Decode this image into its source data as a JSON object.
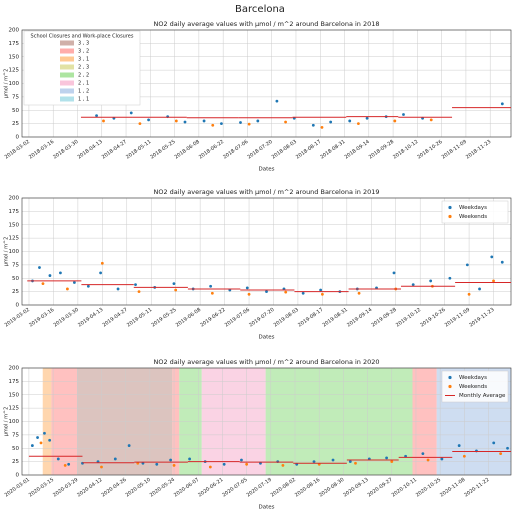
{
  "title": "Barcelona",
  "chart_data": [
    {
      "type": "scatter",
      "title": "NO2 daily average values with μmol / m^2 around Barcelona in 2018",
      "xlabel": "Dates",
      "ylabel": "μmol / m^2",
      "xlim": [
        "2018-02-26",
        "2018-12-05"
      ],
      "xticks": [
        "2018-03-02",
        "2018-03-16",
        "2018-03-30",
        "2018-04-13",
        "2018-04-27",
        "2018-05-11",
        "2018-05-25",
        "2018-06-08",
        "2018-06-22",
        "2018-07-06",
        "2018-07-20",
        "2018-08-03",
        "2018-08-17",
        "2018-08-31",
        "2018-09-14",
        "2018-09-28",
        "2018-10-12",
        "2018-10-26",
        "2018-11-09",
        "2018-11-23"
      ],
      "ylim": [
        0,
        200
      ],
      "yticks": [
        0,
        25,
        50,
        75,
        100,
        125,
        150,
        175,
        200
      ],
      "grid": true,
      "series": [
        {
          "color": "#1f77b4",
          "x": [
            "2018-04-10",
            "2018-04-20",
            "2018-04-30",
            "2018-05-10",
            "2018-05-21",
            "2018-05-31",
            "2018-06-11",
            "2018-06-21",
            "2018-07-02",
            "2018-07-12",
            "2018-07-23",
            "2018-08-02",
            "2018-08-13",
            "2018-08-23",
            "2018-09-03",
            "2018-09-13",
            "2018-09-24",
            "2018-10-04",
            "2018-10-15",
            "2018-11-30"
          ],
          "values": [
            40,
            35,
            45,
            32,
            38,
            28,
            30,
            25,
            27,
            30,
            67,
            35,
            22,
            28,
            30,
            35,
            38,
            42,
            35,
            62
          ]
        },
        {
          "color": "#ff7f0e",
          "x": [
            "2018-04-14",
            "2018-05-05",
            "2018-05-26",
            "2018-06-16",
            "2018-07-07",
            "2018-07-28",
            "2018-08-18",
            "2018-09-08",
            "2018-09-29",
            "2018-10-20"
          ],
          "values": [
            30,
            25,
            30,
            22,
            24,
            28,
            18,
            25,
            30,
            32
          ]
        },
        {
          "style": "step",
          "color": "#d62728",
          "x": [
            "2018-04-01",
            "2018-05-01",
            "2018-06-01",
            "2018-07-01",
            "2018-08-01",
            "2018-09-01",
            "2018-10-01",
            "2018-11-01"
          ],
          "values": [
            37,
            37,
            36,
            36,
            37,
            38,
            37,
            55
          ]
        }
      ],
      "closure_legend": {
        "title": "School Closures and Work-place Closures",
        "corner": "upper left",
        "entries": [
          {
            "label": "3 , 3",
            "color": "#c49c94"
          },
          {
            "label": "3 , 2",
            "color": "#ff9896"
          },
          {
            "label": "3 , 1",
            "color": "#ffbb78"
          },
          {
            "label": "2 , 3",
            "color": "#dbdb8d"
          },
          {
            "label": "2 , 2",
            "color": "#98df8a"
          },
          {
            "label": "2 , 1",
            "color": "#f7b6d2"
          },
          {
            "label": "1 , 2",
            "color": "#aec7e8"
          },
          {
            "label": "1 , 1",
            "color": "#9edae5"
          }
        ]
      }
    },
    {
      "type": "scatter",
      "title": "NO2 daily average values with μmol / m^2 around Barcelona in 2019",
      "xlabel": "Dates",
      "ylabel": "μmol / m^2",
      "xlim": [
        "2019-02-26",
        "2019-12-03"
      ],
      "xticks": [
        "2019-03-02",
        "2019-03-16",
        "2019-03-30",
        "2019-04-13",
        "2019-04-27",
        "2019-05-11",
        "2019-05-25",
        "2019-06-08",
        "2019-06-22",
        "2019-07-06",
        "2019-07-20",
        "2019-08-03",
        "2019-08-17",
        "2019-08-31",
        "2019-09-14",
        "2019-09-28",
        "2019-10-12",
        "2019-10-26",
        "2019-11-09",
        "2019-11-23"
      ],
      "ylim": [
        0,
        200
      ],
      "yticks": [
        0,
        25,
        50,
        75,
        100,
        125,
        150,
        175,
        200
      ],
      "grid": true,
      "legend": "upper right",
      "series": [
        {
          "name": "Weekdays",
          "color": "#1f77b4",
          "x": [
            "2019-03-04",
            "2019-03-08",
            "2019-03-14",
            "2019-03-20",
            "2019-03-28",
            "2019-04-05",
            "2019-04-12",
            "2019-04-22",
            "2019-05-02",
            "2019-05-13",
            "2019-05-24",
            "2019-06-04",
            "2019-06-14",
            "2019-06-25",
            "2019-07-05",
            "2019-07-16",
            "2019-07-26",
            "2019-08-06",
            "2019-08-16",
            "2019-08-27",
            "2019-09-06",
            "2019-09-17",
            "2019-09-27",
            "2019-10-08",
            "2019-10-18",
            "2019-10-29",
            "2019-11-08",
            "2019-11-15",
            "2019-11-22",
            "2019-11-28"
          ],
          "values": [
            45,
            70,
            55,
            60,
            42,
            35,
            60,
            30,
            38,
            33,
            40,
            30,
            35,
            28,
            32,
            25,
            30,
            22,
            28,
            25,
            30,
            32,
            60,
            38,
            45,
            50,
            75,
            30,
            90,
            80
          ]
        },
        {
          "name": "Weekends",
          "color": "#ff7f0e",
          "x": [
            "2019-03-10",
            "2019-03-24",
            "2019-04-13",
            "2019-05-04",
            "2019-05-25",
            "2019-06-15",
            "2019-07-06",
            "2019-07-27",
            "2019-08-17",
            "2019-09-07",
            "2019-09-28",
            "2019-10-19",
            "2019-11-09",
            "2019-11-23"
          ],
          "values": [
            40,
            30,
            78,
            25,
            28,
            22,
            20,
            24,
            20,
            22,
            30,
            35,
            20,
            45
          ]
        },
        {
          "style": "step",
          "color": "#d62728",
          "x": [
            "2019-03-01",
            "2019-04-01",
            "2019-05-01",
            "2019-06-01",
            "2019-07-01",
            "2019-08-01",
            "2019-09-01",
            "2019-10-01",
            "2019-11-01"
          ],
          "values": [
            45,
            38,
            33,
            30,
            28,
            25,
            30,
            35,
            42
          ]
        }
      ]
    },
    {
      "type": "scatter",
      "title": "NO2 daily average values with μmol / m^2 around Barcelona in 2020",
      "xlabel": "Dates",
      "ylabel": "μmol / m^2",
      "xlim": [
        "2020-02-26",
        "2020-12-05"
      ],
      "xticks": [
        "2020-03-01",
        "2020-03-15",
        "2020-03-29",
        "2020-04-12",
        "2020-04-26",
        "2020-05-10",
        "2020-05-24",
        "2020-06-07",
        "2020-06-21",
        "2020-07-05",
        "2020-07-19",
        "2020-08-02",
        "2020-08-16",
        "2020-08-30",
        "2020-09-13",
        "2020-09-27",
        "2020-10-11",
        "2020-10-25",
        "2020-11-08",
        "2020-11-22"
      ],
      "ylim": [
        0,
        200
      ],
      "yticks": [
        0,
        25,
        50,
        75,
        100,
        125,
        150,
        175,
        200
      ],
      "grid": true,
      "legend": "upper right",
      "regions": [
        {
          "start": "2020-03-09",
          "end": "2020-03-14",
          "color": "#ffbb78"
        },
        {
          "start": "2020-03-14",
          "end": "2020-03-29",
          "color": "#ff9896"
        },
        {
          "start": "2020-03-29",
          "end": "2020-05-23",
          "color": "#c49c94"
        },
        {
          "start": "2020-05-23",
          "end": "2020-05-27",
          "color": "#ff9896"
        },
        {
          "start": "2020-05-27",
          "end": "2020-06-09",
          "color": "#98df8a"
        },
        {
          "start": "2020-06-09",
          "end": "2020-07-16",
          "color": "#f7b6d2"
        },
        {
          "start": "2020-07-16",
          "end": "2020-10-09",
          "color": "#98df8a"
        },
        {
          "start": "2020-10-09",
          "end": "2020-10-23",
          "color": "#ff9896"
        },
        {
          "start": "2020-10-23",
          "end": "2020-12-05",
          "color": "#aec7e8"
        }
      ],
      "series": [
        {
          "name": "Weekdays",
          "color": "#1f77b4",
          "x": [
            "2020-03-03",
            "2020-03-06",
            "2020-03-10",
            "2020-03-13",
            "2020-03-18",
            "2020-03-24",
            "2020-04-01",
            "2020-04-10",
            "2020-04-20",
            "2020-04-28",
            "2020-05-06",
            "2020-05-14",
            "2020-05-22",
            "2020-06-02",
            "2020-06-11",
            "2020-06-22",
            "2020-07-02",
            "2020-07-13",
            "2020-07-23",
            "2020-08-03",
            "2020-08-13",
            "2020-08-24",
            "2020-09-03",
            "2020-09-14",
            "2020-09-24",
            "2020-10-05",
            "2020-10-15",
            "2020-10-26",
            "2020-11-05",
            "2020-11-15",
            "2020-11-25",
            "2020-12-03"
          ],
          "values": [
            55,
            70,
            78,
            65,
            30,
            20,
            22,
            25,
            30,
            55,
            22,
            20,
            28,
            30,
            25,
            20,
            28,
            22,
            25,
            20,
            25,
            28,
            25,
            30,
            32,
            35,
            40,
            30,
            55,
            45,
            60,
            50
          ]
        },
        {
          "name": "Weekends",
          "color": "#ff7f0e",
          "x": [
            "2020-03-08",
            "2020-03-22",
            "2020-04-12",
            "2020-05-03",
            "2020-05-24",
            "2020-06-14",
            "2020-07-05",
            "2020-07-26",
            "2020-08-16",
            "2020-09-06",
            "2020-09-27",
            "2020-10-18",
            "2020-11-08",
            "2020-11-29"
          ],
          "values": [
            60,
            18,
            15,
            22,
            18,
            15,
            20,
            18,
            20,
            22,
            25,
            28,
            35,
            40
          ]
        },
        {
          "name": "Monthly Average",
          "style": "step",
          "color": "#d62728",
          "x": [
            "2020-03-01",
            "2020-04-01",
            "2020-05-01",
            "2020-06-01",
            "2020-07-01",
            "2020-08-01",
            "2020-09-01",
            "2020-10-01",
            "2020-11-01"
          ],
          "values": [
            35,
            23,
            24,
            25,
            24,
            22,
            28,
            33,
            44
          ]
        }
      ]
    }
  ]
}
